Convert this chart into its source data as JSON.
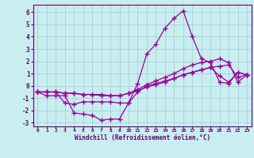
{
  "title": "",
  "xlabel": "Windchill (Refroidissement éolien,°C)",
  "ylabel": "",
  "bg_color": "#c8eef0",
  "grid_color": "#a8c8d0",
  "line_color": "#990099",
  "marker": "+",
  "marker_size": 4,
  "marker_lw": 1.0,
  "line_width": 0.9,
  "xlim": [
    -0.5,
    23.5
  ],
  "ylim": [
    -3.3,
    6.6
  ],
  "yticks": [
    -3,
    -2,
    -1,
    0,
    1,
    2,
    3,
    4,
    5,
    6
  ],
  "xticks": [
    0,
    1,
    2,
    3,
    4,
    5,
    6,
    7,
    8,
    9,
    10,
    11,
    12,
    13,
    14,
    15,
    16,
    17,
    18,
    19,
    20,
    21,
    22,
    23
  ],
  "series": [
    {
      "x": [
        0,
        1,
        2,
        3,
        4,
        5,
        6,
        7,
        8,
        9,
        10,
        11,
        12,
        13,
        14,
        15,
        16,
        17,
        18,
        19,
        20,
        21,
        22,
        23
      ],
      "y": [
        -0.5,
        -0.8,
        -0.8,
        -0.8,
        -2.2,
        -2.3,
        -2.4,
        -2.8,
        -2.7,
        -2.7,
        -1.4,
        0.2,
        2.6,
        3.4,
        4.7,
        5.5,
        6.1,
        4.0,
        2.2,
        1.9,
        0.3,
        0.2,
        1.1,
        0.9
      ]
    },
    {
      "x": [
        0,
        1,
        2,
        3,
        4,
        5,
        6,
        7,
        8,
        9,
        10,
        11,
        12,
        13,
        14,
        15,
        16,
        17,
        18,
        19,
        20,
        21,
        22,
        23
      ],
      "y": [
        -0.5,
        -0.5,
        -0.5,
        -0.6,
        -0.6,
        -0.7,
        -0.7,
        -0.7,
        -0.8,
        -0.8,
        -0.6,
        -0.3,
        0.1,
        0.4,
        0.7,
        1.0,
        1.4,
        1.7,
        1.9,
        2.0,
        2.2,
        1.9,
        0.3,
        0.9
      ]
    },
    {
      "x": [
        0,
        1,
        2,
        3,
        4,
        5,
        6,
        7,
        8,
        9,
        10,
        11,
        12,
        13,
        14,
        15,
        16,
        17,
        18,
        19,
        20,
        21,
        22,
        23
      ],
      "y": [
        -0.5,
        -0.5,
        -0.5,
        -0.6,
        -0.6,
        -0.7,
        -0.7,
        -0.8,
        -0.8,
        -0.8,
        -0.6,
        -0.4,
        -0.1,
        0.1,
        0.3,
        0.6,
        0.9,
        1.1,
        1.3,
        1.5,
        1.6,
        1.7,
        0.7,
        0.9
      ]
    },
    {
      "x": [
        0,
        1,
        2,
        3,
        4,
        5,
        6,
        7,
        8,
        9,
        10,
        11,
        12,
        13,
        14,
        15,
        16,
        17,
        18,
        19,
        20,
        21,
        22,
        23
      ],
      "y": [
        -0.5,
        -0.5,
        -0.5,
        -1.4,
        -1.5,
        -1.3,
        -1.3,
        -1.3,
        -1.3,
        -1.4,
        -1.4,
        -0.5,
        0.0,
        0.2,
        0.4,
        0.6,
        0.9,
        1.1,
        1.3,
        1.5,
        0.8,
        0.3,
        1.1,
        0.9
      ]
    }
  ]
}
